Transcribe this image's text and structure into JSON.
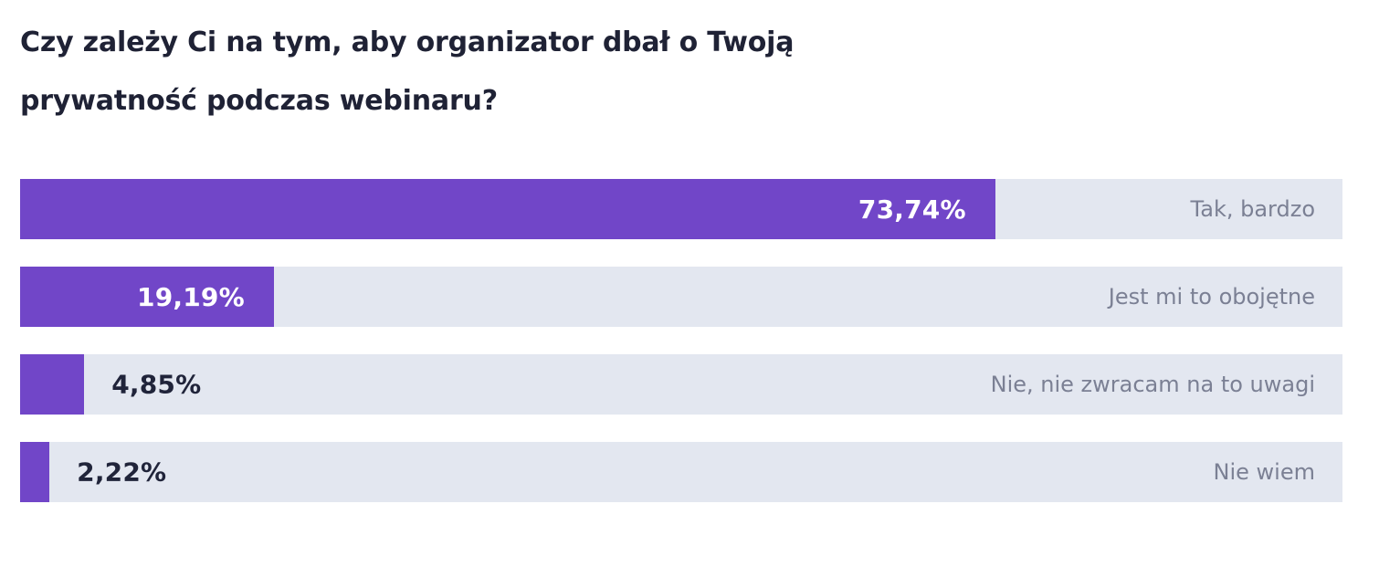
{
  "colors": {
    "bar_fill": "#7146c8",
    "bar_track": "#e3e7f0",
    "title_text": "#1f2235",
    "value_inside_text": "#ffffff",
    "value_outside_text": "#20243a",
    "category_text": "#7b8094",
    "background": "#ffffff"
  },
  "chart_data": {
    "type": "bar",
    "orientation": "horizontal",
    "title": "Czy zależy Ci na tym, aby organizator dbał o Twoją prywatność podczas webinaru?",
    "title_lines": [
      "Czy zależy Ci na tym, aby organizator dbał o Twoją",
      "prywatność podczas webinaru?"
    ],
    "value_format": "percent",
    "xlim": [
      0,
      100
    ],
    "grid": false,
    "legend": false,
    "categories": [
      "Tak, bardzo",
      "Jest mi to obojętne",
      "Nie, nie zwracam na to uwagi",
      "Nie wiem"
    ],
    "values": [
      73.74,
      19.19,
      4.85,
      2.22
    ],
    "rows": [
      {
        "category": "Tak, bardzo",
        "value": 73.74,
        "value_label": "73,74%",
        "value_label_position": "inside"
      },
      {
        "category": "Jest mi to obojętne",
        "value": 19.19,
        "value_label": "19,19%",
        "value_label_position": "inside"
      },
      {
        "category": "Nie, nie zwracam na to uwagi",
        "value": 4.85,
        "value_label": "4,85%",
        "value_label_position": "outside"
      },
      {
        "category": "Nie wiem",
        "value": 2.22,
        "value_label": "2,22%",
        "value_label_position": "outside"
      }
    ]
  }
}
